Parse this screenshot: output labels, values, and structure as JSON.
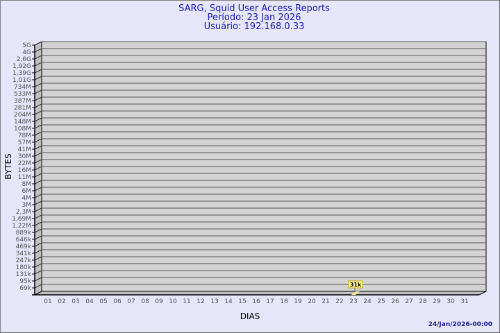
{
  "chart_data": {
    "type": "bar",
    "title": [
      "SARG, Squid User Access Reports",
      "Período: 23 Jan 2026",
      "Usuário: 192.168.0.33"
    ],
    "xlabel": "DIAS",
    "ylabel": "BYTES",
    "y_scale": "log",
    "grid": true,
    "ytick_labels": [
      "5G",
      "4G",
      "2,6G",
      "1,92G",
      "1,39G",
      "1,01G",
      "734M",
      "533M",
      "387M",
      "281M",
      "204M",
      "148M",
      "108M",
      "78M",
      "57M",
      "41M",
      "30M",
      "22M",
      "16M",
      "11M",
      "8M",
      "6M",
      "4M",
      "3M",
      "2,3M",
      "1,69M",
      "1,22M",
      "889k",
      "646k",
      "469k",
      "341k",
      "247k",
      "180k",
      "131k",
      "95k",
      "69k"
    ],
    "categories": [
      "01",
      "02",
      "03",
      "04",
      "05",
      "06",
      "07",
      "08",
      "09",
      "10",
      "11",
      "12",
      "13",
      "14",
      "15",
      "16",
      "17",
      "18",
      "19",
      "20",
      "21",
      "22",
      "23",
      "24",
      "25",
      "26",
      "27",
      "28",
      "29",
      "30",
      "31"
    ],
    "series": [
      {
        "points": [
          {
            "x": "23",
            "value": 31000,
            "label": "31k"
          }
        ]
      }
    ],
    "colors": {
      "background": "#e6e6fa",
      "plot": "#d3d3d3",
      "bar": "#ffe88c",
      "label_bg": "#ffffa0",
      "title": "#1a1aa6"
    }
  },
  "footer": {
    "timestamp": "24/Jan/2026-00:00"
  }
}
